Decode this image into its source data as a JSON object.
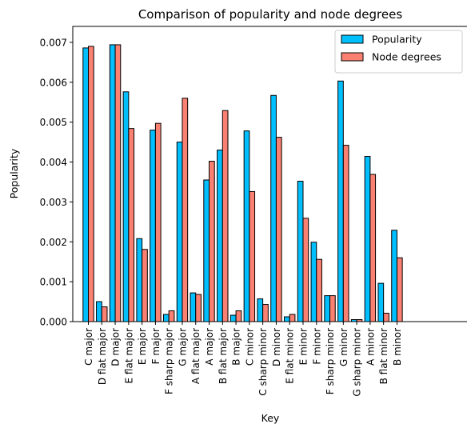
{
  "chart_data": {
    "type": "bar",
    "title": "Comparison of popularity and node degrees",
    "xlabel": "Key",
    "ylabel": "Popularity",
    "ylim": [
      0,
      0.0074
    ],
    "yticks": [
      "0.000",
      "0.001",
      "0.002",
      "0.003",
      "0.004",
      "0.005",
      "0.006",
      "0.007"
    ],
    "ytick_values": [
      0,
      0.001,
      0.002,
      0.003,
      0.004,
      0.005,
      0.006,
      0.007
    ],
    "grid": false,
    "legend_position": "top-right",
    "categories": [
      "C major",
      "D flat major",
      "D major",
      "E flat major",
      "E major",
      "F major",
      "F sharp major",
      "G major",
      "A flat major",
      "A major",
      "B flat major",
      "B major",
      "C minor",
      "C sharp minor",
      "D minor",
      "E flat minor",
      "E minor",
      "F minor",
      "F sharp minor",
      "G minor",
      "G sharp minor",
      "A minor",
      "B flat minor",
      "B minor"
    ],
    "series": [
      {
        "name": "Popularity",
        "color": "#00bfff",
        "values": [
          0.00686,
          0.0005,
          0.00694,
          0.00576,
          0.00208,
          0.0048,
          0.00018,
          0.0045,
          0.00072,
          0.00355,
          0.0043,
          0.00016,
          0.00478,
          0.00057,
          0.00567,
          0.00012,
          0.00352,
          0.00199,
          0.00065,
          0.00603,
          5e-05,
          0.00414,
          0.00096,
          0.00229
        ]
      },
      {
        "name": "Node degrees",
        "color": "#fa8072",
        "values": [
          0.0069,
          0.00037,
          0.00694,
          0.00484,
          0.00181,
          0.00497,
          0.00027,
          0.0056,
          0.00068,
          0.00402,
          0.00529,
          0.00027,
          0.00326,
          0.00043,
          0.00462,
          0.00018,
          0.00259,
          0.00156,
          0.00065,
          0.00442,
          5e-05,
          0.00369,
          0.00021,
          0.0016
        ]
      }
    ]
  }
}
